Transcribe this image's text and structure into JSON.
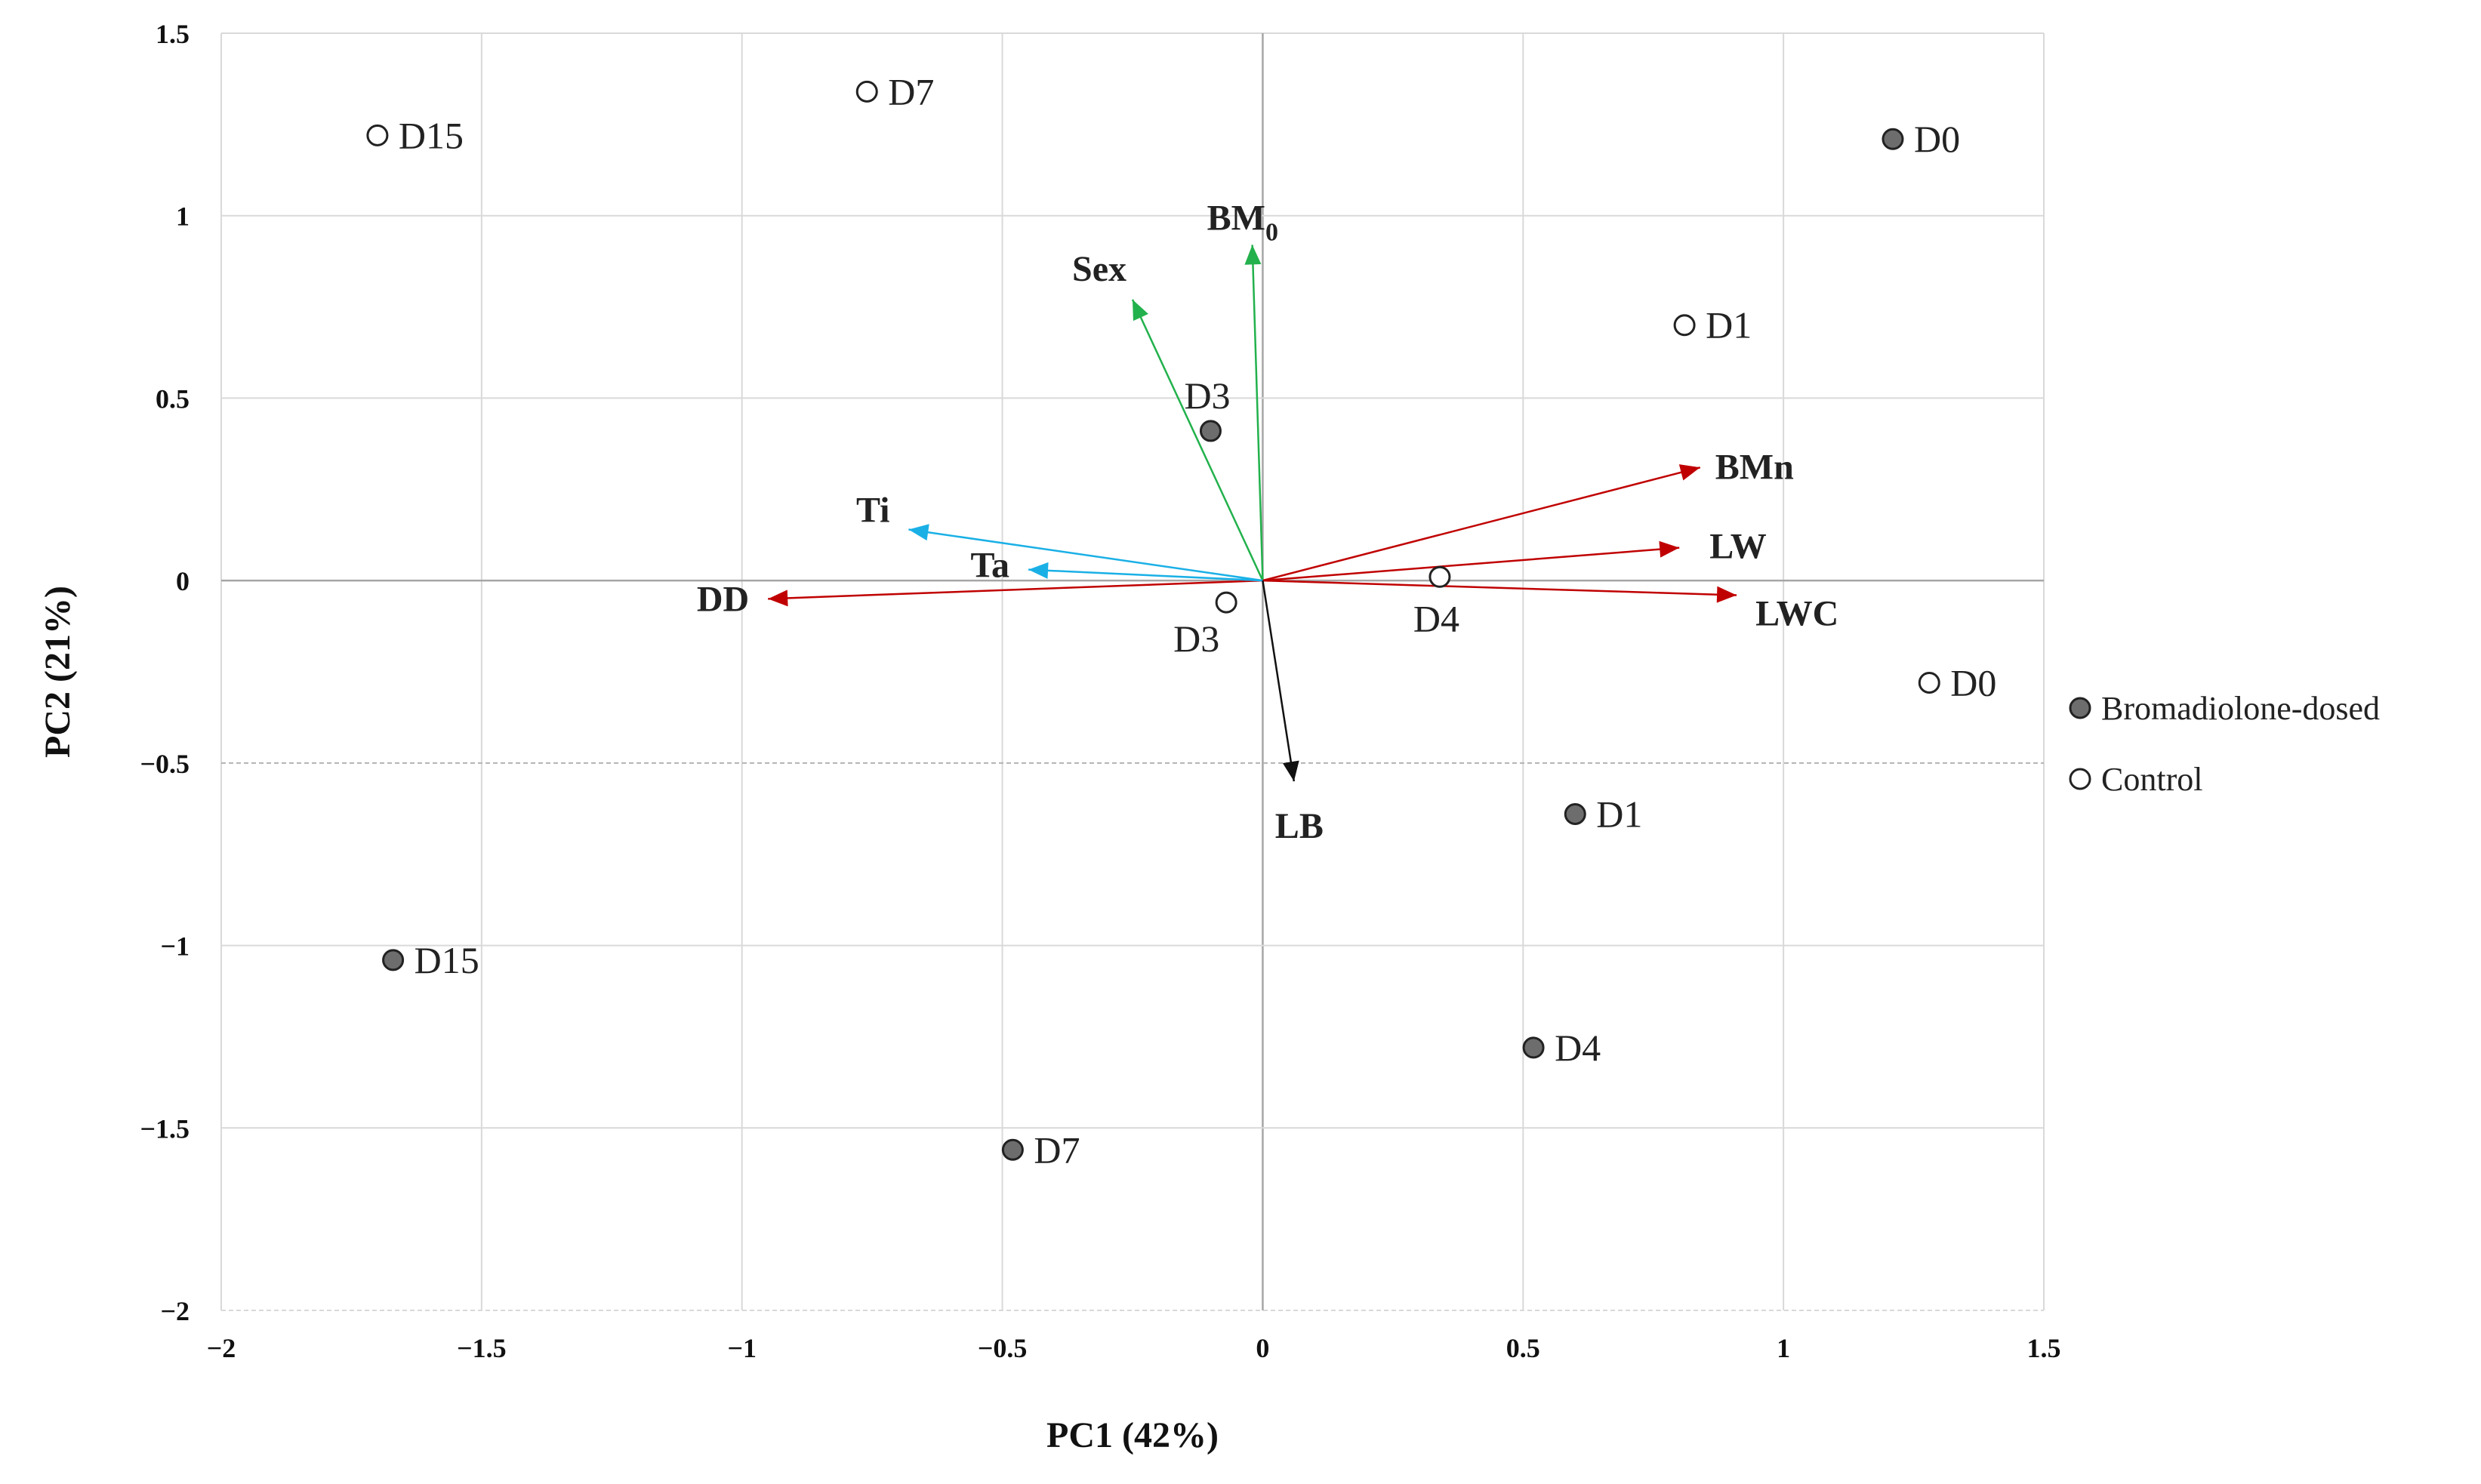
{
  "chart_data": {
    "type": "scatter",
    "title": "",
    "xlabel": "PC1 (42%)",
    "ylabel": "PC2 (21%)",
    "xlim": [
      -2,
      1.5
    ],
    "ylim": [
      -2,
      1.5
    ],
    "x_ticks": [
      -2,
      -1.5,
      -1,
      -0.5,
      0,
      0.5,
      1,
      1.5
    ],
    "y_ticks": [
      -2,
      -1.5,
      -1,
      -0.5,
      0,
      0.5,
      1,
      1.5
    ],
    "x_tick_labels": [
      "−2",
      "−1.5",
      "−1",
      "−0.5",
      "0",
      "0.5",
      "1",
      "1.5"
    ],
    "y_tick_labels": [
      "−2",
      "−1.5",
      "−1",
      "−0.5",
      "0",
      "0.5",
      "1",
      "1.5"
    ],
    "grid": true,
    "legend_position": "right",
    "series": [
      {
        "name": "Bromadiolone-dosed",
        "marker": "filled",
        "points": [
          {
            "label": "D0",
            "x": 1.21,
            "y": 1.21
          },
          {
            "label": "D3",
            "x": -0.1,
            "y": 0.41
          },
          {
            "label": "D1",
            "x": 0.6,
            "y": -0.64
          },
          {
            "label": "D15",
            "x": -1.67,
            "y": -1.04
          },
          {
            "label": "D4",
            "x": 0.52,
            "y": -1.28
          },
          {
            "label": "D7",
            "x": -0.48,
            "y": -1.56
          }
        ]
      },
      {
        "name": "Control",
        "marker": "open",
        "points": [
          {
            "label": "D15",
            "x": -1.7,
            "y": 1.22
          },
          {
            "label": "D7",
            "x": -0.76,
            "y": 1.34
          },
          {
            "label": "D1",
            "x": 0.81,
            "y": 0.7
          },
          {
            "label": "D3",
            "x": -0.07,
            "y": -0.06
          },
          {
            "label": "D4",
            "x": 0.34,
            "y": 0.01
          },
          {
            "label": "D0",
            "x": 1.28,
            "y": -0.28
          }
        ]
      }
    ],
    "loadings": [
      {
        "label": "BM",
        "subscript": "0",
        "x": -0.02,
        "y": 0.92,
        "color": "#22b14c"
      },
      {
        "label": "Sex",
        "x": -0.25,
        "y": 0.77,
        "color": "#22b14c"
      },
      {
        "label": "BMn",
        "x": 0.84,
        "y": 0.31,
        "color": "#c00000"
      },
      {
        "label": "LW",
        "x": 0.8,
        "y": 0.09,
        "color": "#c00000"
      },
      {
        "label": "LWC",
        "x": 0.91,
        "y": -0.04,
        "color": "#c00000"
      },
      {
        "label": "DD",
        "x": -0.95,
        "y": -0.05,
        "color": "#c00000"
      },
      {
        "label": "Ti",
        "x": -0.68,
        "y": 0.14,
        "color": "#1ab0e6"
      },
      {
        "label": "Ta",
        "x": -0.45,
        "y": 0.03,
        "color": "#1ab0e6"
      },
      {
        "label": "LB",
        "x": 0.06,
        "y": -0.55,
        "color": "#111111"
      }
    ],
    "colors": {
      "filled_marker": "#6d6d6d",
      "grid": "#d9d9d9",
      "zero_line": "#a6a6a6"
    }
  }
}
